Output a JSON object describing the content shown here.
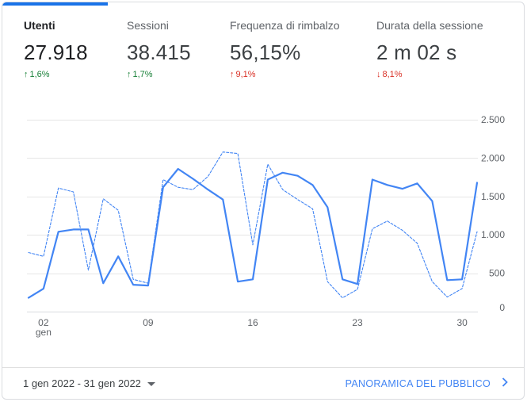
{
  "metrics": [
    {
      "label": "Utenti",
      "value": "27.918",
      "change": "1,6%",
      "direction": "up",
      "color": "#188038",
      "active": true
    },
    {
      "label": "Sessioni",
      "value": "38.415",
      "change": "1,7%",
      "direction": "up",
      "color": "#188038",
      "active": false
    },
    {
      "label": "Frequenza di rimbalzo",
      "value": "56,15%",
      "change": "9,1%",
      "direction": "up",
      "color": "#d93025",
      "active": false
    },
    {
      "label": "Durata della sessione",
      "value": "2 m 02 s",
      "change": "8,1%",
      "direction": "down",
      "color": "#d93025",
      "active": false
    }
  ],
  "chart_data": {
    "type": "line",
    "x": [
      1,
      2,
      3,
      4,
      5,
      6,
      7,
      8,
      9,
      10,
      11,
      12,
      13,
      14,
      15,
      16,
      17,
      18,
      19,
      20,
      21,
      22,
      23,
      24,
      25,
      26,
      27,
      28,
      29,
      30,
      31
    ],
    "x_ticks": [
      {
        "day": 2,
        "label": "02",
        "sublabel": "gen"
      },
      {
        "day": 9,
        "label": "09",
        "sublabel": ""
      },
      {
        "day": 16,
        "label": "16",
        "sublabel": ""
      },
      {
        "day": 23,
        "label": "23",
        "sublabel": ""
      },
      {
        "day": 30,
        "label": "30",
        "sublabel": ""
      }
    ],
    "y_ticks": [
      {
        "value": 0,
        "label": "0"
      },
      {
        "value": 500,
        "label": "500"
      },
      {
        "value": 1000,
        "label": "1.000"
      },
      {
        "value": 1500,
        "label": "1.500"
      },
      {
        "value": 2000,
        "label": "2.000"
      },
      {
        "value": 2500,
        "label": "2.500"
      }
    ],
    "ylim": [
      0,
      2500
    ],
    "axis_position": "right",
    "grid": true,
    "series": [
      {
        "style": "solid",
        "color": "#4285f4",
        "values": [
          180,
          300,
          1040,
          1070,
          1070,
          370,
          720,
          350,
          340,
          1620,
          1860,
          1730,
          1590,
          1460,
          390,
          420,
          1720,
          1810,
          1770,
          1650,
          1360,
          420,
          360,
          1720,
          1650,
          1600,
          1670,
          1440,
          410,
          420,
          1680
        ]
      },
      {
        "style": "dashed",
        "color": "#4285f4",
        "values": [
          770,
          720,
          1610,
          1560,
          540,
          1470,
          1320,
          420,
          370,
          1720,
          1620,
          1590,
          1760,
          2080,
          2060,
          870,
          1920,
          1590,
          1460,
          1340,
          390,
          180,
          290,
          1080,
          1180,
          1060,
          890,
          390,
          190,
          300,
          1040
        ]
      }
    ]
  },
  "footer": {
    "date_range": "1 gen 2022 - 31 gen 2022",
    "audience_link": "PANORAMICA DEL PUBBLICO"
  }
}
